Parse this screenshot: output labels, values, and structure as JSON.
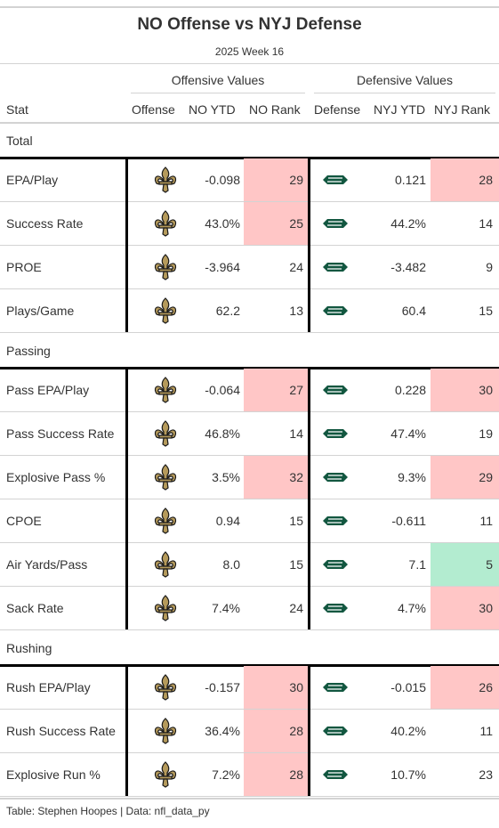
{
  "header": {
    "title": "NO Offense vs NYJ Defense",
    "subtitle": "2025 Week 16"
  },
  "spanners": {
    "offense": "Offensive Values",
    "defense": "Defensive Values"
  },
  "columns": {
    "stat": "Stat",
    "offense": "Offense",
    "no_ytd": "NO YTD",
    "no_rank": "NO Rank",
    "defense": "Defense",
    "nyj_ytd": "NYJ YTD",
    "nyj_rank": "NYJ Rank"
  },
  "colors": {
    "bad_rank": "#ffc6c6",
    "good_rank": "#b3ecd0",
    "saints_gold": "#b59a5b",
    "saints_black": "#1a1a1a",
    "jets_green": "#125740"
  },
  "icons": {
    "offense_logo": "saints-fleur-de-lis-icon",
    "defense_logo": "jets-logo-icon"
  },
  "groups": [
    {
      "label": "Total",
      "rows": [
        {
          "stat": "EPA/Play",
          "no_ytd": "-0.098",
          "no_rank": "29",
          "no_hl": "red",
          "nyj_ytd": "0.121",
          "nyj_rank": "28",
          "nyj_hl": "red"
        },
        {
          "stat": "Success Rate",
          "no_ytd": "43.0%",
          "no_rank": "25",
          "no_hl": "red",
          "nyj_ytd": "44.2%",
          "nyj_rank": "14",
          "nyj_hl": ""
        },
        {
          "stat": "PROE",
          "no_ytd": "-3.964",
          "no_rank": "24",
          "no_hl": "",
          "nyj_ytd": "-3.482",
          "nyj_rank": "9",
          "nyj_hl": ""
        },
        {
          "stat": "Plays/Game",
          "no_ytd": "62.2",
          "no_rank": "13",
          "no_hl": "",
          "nyj_ytd": "60.4",
          "nyj_rank": "15",
          "nyj_hl": ""
        }
      ]
    },
    {
      "label": "Passing",
      "rows": [
        {
          "stat": "Pass EPA/Play",
          "no_ytd": "-0.064",
          "no_rank": "27",
          "no_hl": "red",
          "nyj_ytd": "0.228",
          "nyj_rank": "30",
          "nyj_hl": "red"
        },
        {
          "stat": "Pass Success Rate",
          "no_ytd": "46.8%",
          "no_rank": "14",
          "no_hl": "",
          "nyj_ytd": "47.4%",
          "nyj_rank": "19",
          "nyj_hl": ""
        },
        {
          "stat": "Explosive Pass %",
          "no_ytd": "3.5%",
          "no_rank": "32",
          "no_hl": "red",
          "nyj_ytd": "9.3%",
          "nyj_rank": "29",
          "nyj_hl": "red"
        },
        {
          "stat": "CPOE",
          "no_ytd": "0.94",
          "no_rank": "15",
          "no_hl": "",
          "nyj_ytd": "-0.611",
          "nyj_rank": "11",
          "nyj_hl": ""
        },
        {
          "stat": "Air Yards/Pass",
          "no_ytd": "8.0",
          "no_rank": "15",
          "no_hl": "",
          "nyj_ytd": "7.1",
          "nyj_rank": "5",
          "nyj_hl": "green"
        },
        {
          "stat": "Sack Rate",
          "no_ytd": "7.4%",
          "no_rank": "24",
          "no_hl": "",
          "nyj_ytd": "4.7%",
          "nyj_rank": "30",
          "nyj_hl": "red"
        }
      ]
    },
    {
      "label": "Rushing",
      "rows": [
        {
          "stat": "Rush EPA/Play",
          "no_ytd": "-0.157",
          "no_rank": "30",
          "no_hl": "red",
          "nyj_ytd": "-0.015",
          "nyj_rank": "26",
          "nyj_hl": "red"
        },
        {
          "stat": "Rush Success Rate",
          "no_ytd": "36.4%",
          "no_rank": "28",
          "no_hl": "red",
          "nyj_ytd": "40.2%",
          "nyj_rank": "11",
          "nyj_hl": ""
        },
        {
          "stat": "Explosive Run %",
          "no_ytd": "7.2%",
          "no_rank": "28",
          "no_hl": "red",
          "nyj_ytd": "10.7%",
          "nyj_rank": "23",
          "nyj_hl": ""
        }
      ]
    }
  ],
  "footer": "Table: Stephen Hoopes | Data: nfl_data_py"
}
